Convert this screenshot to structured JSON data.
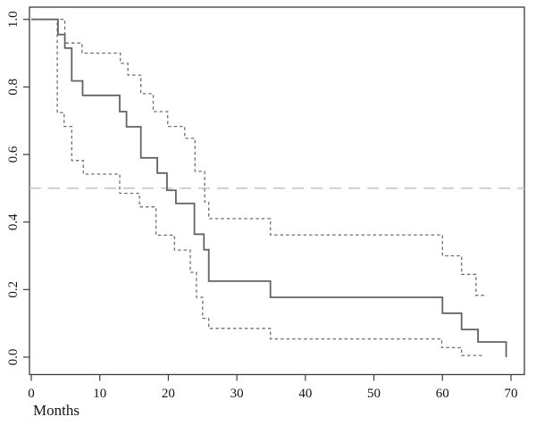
{
  "figure": {
    "background": "#ffffff",
    "description": "Kaplan-Meier survival curve with dashed 95% confidence interval bounds and a dashed horizontal reference line at 0.5"
  },
  "chart_data": {
    "type": "line",
    "subtype": "kaplan-meier-step",
    "title": "",
    "xlabel": "Months",
    "ylabel": "",
    "xlim": [
      0,
      72
    ],
    "ylim": [
      0,
      1.04
    ],
    "grid": false,
    "legend_position": "none",
    "x_ticks": [
      {
        "value": 0,
        "label": "0"
      },
      {
        "value": 10,
        "label": "10"
      },
      {
        "value": 20,
        "label": "20"
      },
      {
        "value": 30,
        "label": "30"
      },
      {
        "value": 40,
        "label": "40"
      },
      {
        "value": 50,
        "label": "50"
      },
      {
        "value": 60,
        "label": "60"
      },
      {
        "value": 70,
        "label": "70"
      }
    ],
    "y_ticks": [
      {
        "value": 0.0,
        "label": "0.0"
      },
      {
        "value": 0.2,
        "label": "0.2"
      },
      {
        "value": 0.4,
        "label": "0.4"
      },
      {
        "value": 0.6,
        "label": "0.6"
      },
      {
        "value": 0.8,
        "label": "0.8"
      },
      {
        "value": 1.0,
        "label": "1.0"
      }
    ],
    "reference_line": {
      "y": 0.5,
      "style": "longdash",
      "color": "#c6c6c6"
    },
    "series": [
      {
        "name": "survival-estimate",
        "style": "solid",
        "color": "#636363",
        "width": 1.8,
        "end": 69.3,
        "steps": [
          [
            0,
            1.0
          ],
          [
            3.9,
            0.955
          ],
          [
            4.9,
            0.915
          ],
          [
            5.9,
            0.818
          ],
          [
            7.5,
            0.775
          ],
          [
            12.9,
            0.727
          ],
          [
            13.9,
            0.682
          ],
          [
            16.0,
            0.59
          ],
          [
            18.4,
            0.545
          ],
          [
            19.8,
            0.494
          ],
          [
            21.1,
            0.455
          ],
          [
            23.8,
            0.364
          ],
          [
            25.2,
            0.318
          ],
          [
            25.9,
            0.225
          ],
          [
            34.9,
            0.177
          ],
          [
            60.0,
            0.13
          ],
          [
            62.8,
            0.082
          ],
          [
            65.2,
            0.045
          ],
          [
            69.3,
            0.0
          ]
        ]
      },
      {
        "name": "upper-95-ci",
        "style": "dashed",
        "color": "#6e6e6e",
        "width": 1.3,
        "end": 66.5,
        "steps": [
          [
            0,
            1.0
          ],
          [
            4.9,
            0.93
          ],
          [
            7.4,
            0.9
          ],
          [
            13.0,
            0.87
          ],
          [
            14.1,
            0.835
          ],
          [
            16.0,
            0.78
          ],
          [
            17.8,
            0.727
          ],
          [
            19.9,
            0.683
          ],
          [
            22.4,
            0.648
          ],
          [
            23.9,
            0.55
          ],
          [
            25.3,
            0.46
          ],
          [
            25.9,
            0.41
          ],
          [
            34.9,
            0.362
          ],
          [
            60.0,
            0.3
          ],
          [
            62.8,
            0.245
          ],
          [
            64.9,
            0.183
          ]
        ]
      },
      {
        "name": "lower-95-ci",
        "style": "dashed",
        "color": "#6e6e6e",
        "width": 1.3,
        "end": 65.8,
        "steps": [
          [
            0,
            1.0
          ],
          [
            3.8,
            0.724
          ],
          [
            4.8,
            0.683
          ],
          [
            5.9,
            0.582
          ],
          [
            7.6,
            0.542
          ],
          [
            12.9,
            0.485
          ],
          [
            15.8,
            0.445
          ],
          [
            18.2,
            0.361
          ],
          [
            20.9,
            0.317
          ],
          [
            23.2,
            0.251
          ],
          [
            24.1,
            0.177
          ],
          [
            25.0,
            0.115
          ],
          [
            25.9,
            0.085
          ],
          [
            34.9,
            0.054
          ],
          [
            59.9,
            0.028
          ],
          [
            62.8,
            0.005
          ]
        ]
      }
    ]
  },
  "axes": {
    "x_title": "Months",
    "frame_color": "#3d3d3d",
    "tick_color": "#3d3d3d",
    "text_color": "#141414"
  }
}
